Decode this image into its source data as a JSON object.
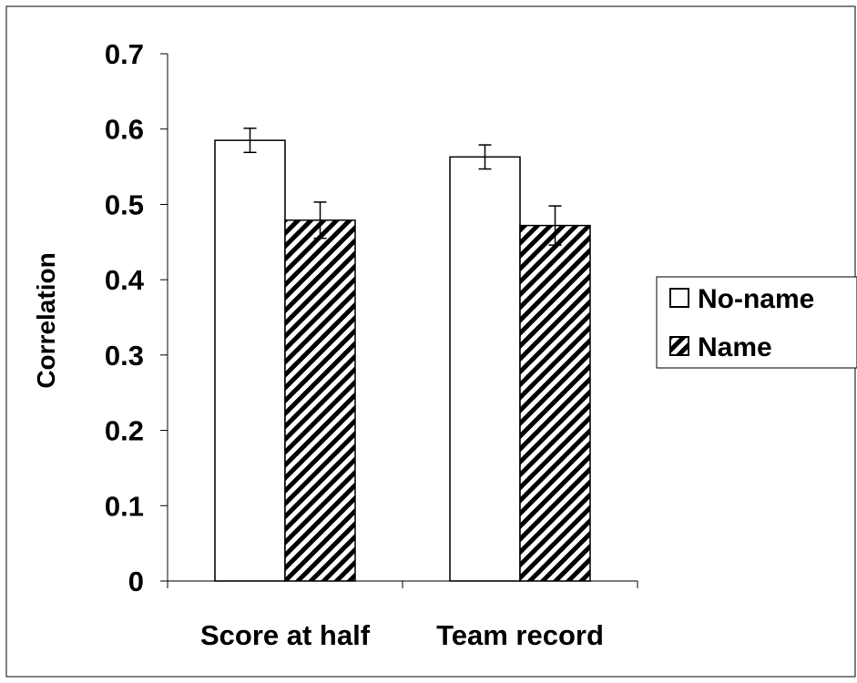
{
  "chart_data": {
    "type": "bar",
    "title": "",
    "xlabel": "",
    "ylabel": "Correlation",
    "ylim": [
      0,
      0.7
    ],
    "yticks": [
      "0",
      "0.1",
      "0.2",
      "0.3",
      "0.4",
      "0.5",
      "0.6",
      "0.7"
    ],
    "grid": false,
    "legend_position": "right",
    "categories": [
      "Score at half",
      "Team record"
    ],
    "series": [
      {
        "name": "No-name",
        "values": [
          0.585,
          0.563
        ],
        "errors": [
          0.016,
          0.016
        ],
        "fill": "white",
        "color": "#ffffff"
      },
      {
        "name": "Name",
        "values": [
          0.479,
          0.472
        ],
        "errors": [
          0.024,
          0.026
        ],
        "fill": "diagonal-hatch",
        "color": "#000000"
      }
    ]
  }
}
